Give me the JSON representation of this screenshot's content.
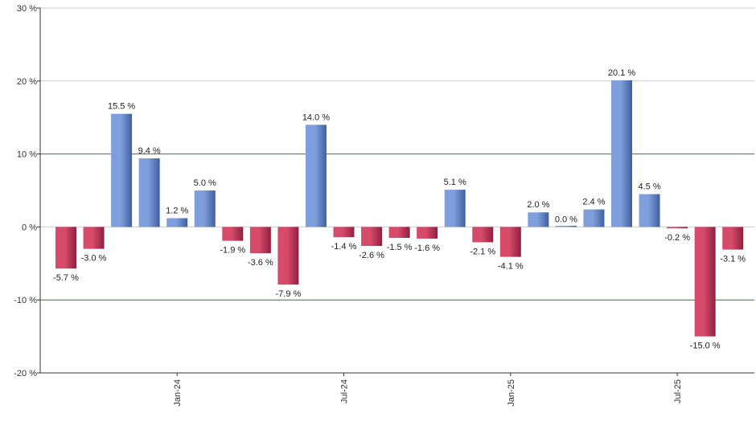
{
  "chart_data": {
    "type": "bar",
    "y_unit": "%",
    "ylim": [
      -20,
      30
    ],
    "y_ticks": [
      -20,
      -10,
      0,
      10,
      20,
      30
    ],
    "y_tick_labels": [
      "-20 %",
      "-10 %",
      "0 %",
      "10 %",
      "20 %",
      "30 %"
    ],
    "emphasized_gridlines": [
      10,
      -10
    ],
    "grid": true,
    "x_tick_labels": [
      "Jan-24",
      "Jul-24",
      "Jan-25",
      "Jul-25"
    ],
    "x_tick_bar_index": [
      4,
      10,
      16,
      22
    ],
    "values": [
      -5.7,
      -3.0,
      15.5,
      9.4,
      1.2,
      5.0,
      -1.9,
      -3.6,
      -7.9,
      14.0,
      -1.4,
      -2.6,
      -1.5,
      -1.6,
      5.1,
      -2.1,
      -4.1,
      2.0,
      0.0,
      2.4,
      20.1,
      4.5,
      -0.2,
      -15.0,
      -3.1
    ],
    "data_labels": [
      "-5.7 %",
      "-3.0 %",
      "15.5 %",
      "9.4 %",
      "1.2 %",
      "5.0 %",
      "-1.9 %",
      "-3.6 %",
      "-7.9 %",
      "14.0 %",
      "-1.4 %",
      "-2.6 %",
      "-1.5 %",
      "-1.6 %",
      "5.1 %",
      "-2.1 %",
      "-4.1 %",
      "2.0 %",
      "0.0 %",
      "2.4 %",
      "20.1 %",
      "4.5 %",
      "-0.2 %",
      "-15.0 %",
      "-3.1 %"
    ],
    "colors": {
      "positive": "#7f9fdc",
      "positive_dark": "#3f5f9f",
      "negative": "#d64a6a",
      "negative_dark": "#8f1f3f",
      "grid": "#cccccc",
      "grid_emphasis": "#2e7d32",
      "axis": "#333333"
    }
  }
}
